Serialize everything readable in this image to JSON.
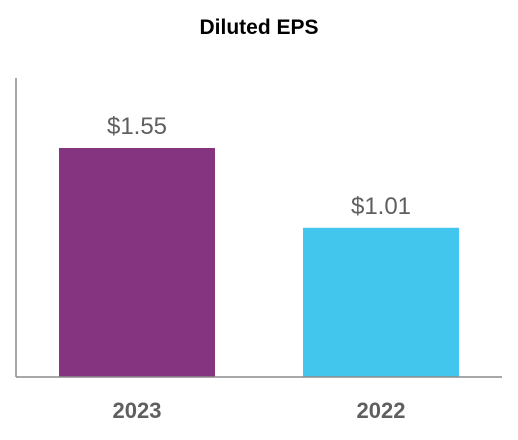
{
  "chart_data": {
    "type": "bar",
    "title": "Diluted EPS",
    "xlabel": "",
    "ylabel": "",
    "categories": [
      "2023",
      "2022"
    ],
    "values": [
      1.55,
      1.01
    ],
    "value_labels": [
      "$1.55",
      "$1.01"
    ],
    "ylim": [
      0,
      1.55
    ],
    "colors": [
      "#85357F",
      "#42C6EE"
    ],
    "grid": false,
    "legend": "none"
  }
}
